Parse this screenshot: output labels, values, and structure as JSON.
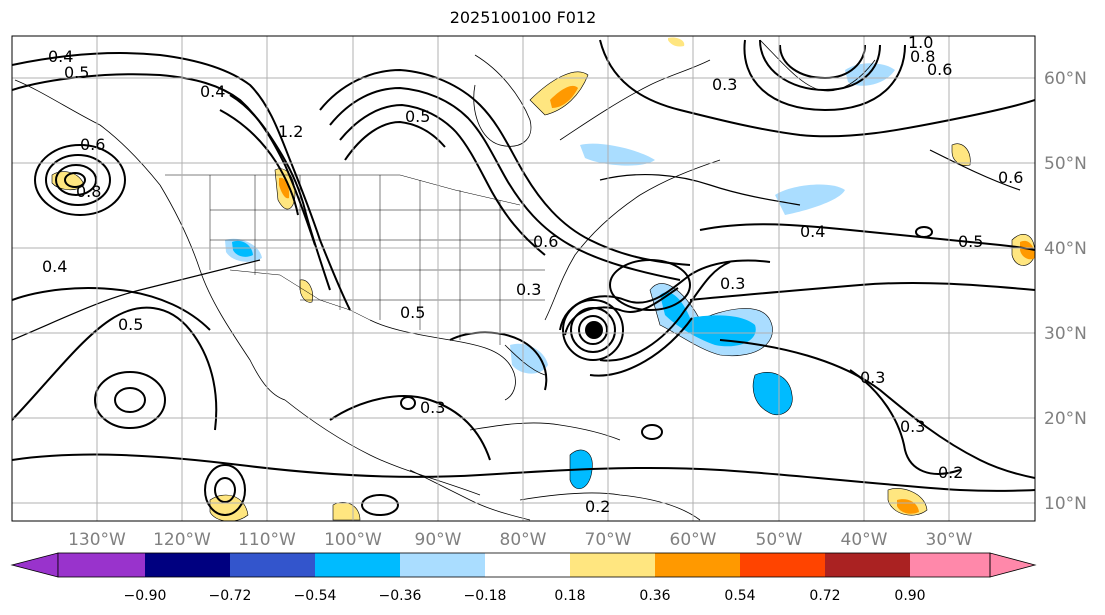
{
  "title": "2025100100 F012",
  "lon_labels": [
    "130°W",
    "120°W",
    "110°W",
    "100°W",
    "90°W",
    "80°W",
    "70°W",
    "60°W",
    "50°W",
    "40°W",
    "30°W"
  ],
  "lat_labels": [
    "60°N",
    "50°N",
    "40°N",
    "30°N",
    "20°N",
    "10°N"
  ],
  "colorbar": {
    "colors": [
      "#9933cc",
      "#000080",
      "#3355cc",
      "#00bbff",
      "#aaddff",
      "#ffffff",
      "#ffe680",
      "#ff9900",
      "#ff4400",
      "#aa2222",
      "#ff88aa"
    ],
    "tick_labels": [
      "−0.90",
      "−0.72",
      "−0.54",
      "−0.36",
      "−0.18",
      "0.18",
      "0.36",
      "0.54",
      "0.72",
      "0.90"
    ]
  },
  "contour_labels": [
    {
      "text": "0.4"
    },
    {
      "text": "0.5"
    },
    {
      "text": "0.4"
    },
    {
      "text": "1.2"
    },
    {
      "text": "0.5"
    },
    {
      "text": "0.6"
    },
    {
      "text": "0.3"
    },
    {
      "text": "0.4"
    },
    {
      "text": "0.5"
    },
    {
      "text": "0.6"
    },
    {
      "text": "0.3"
    },
    {
      "text": "0.3"
    },
    {
      "text": "0.3"
    },
    {
      "text": "0.2"
    },
    {
      "text": "0.4"
    },
    {
      "text": "0.5"
    },
    {
      "text": "0.3"
    },
    {
      "text": "1.0"
    },
    {
      "text": "0.8"
    },
    {
      "text": "0.6"
    },
    {
      "text": "0.5"
    },
    {
      "text": "0.3"
    },
    {
      "text": "0.2"
    },
    {
      "text": "0.8"
    },
    {
      "text": "0.6"
    }
  ]
}
